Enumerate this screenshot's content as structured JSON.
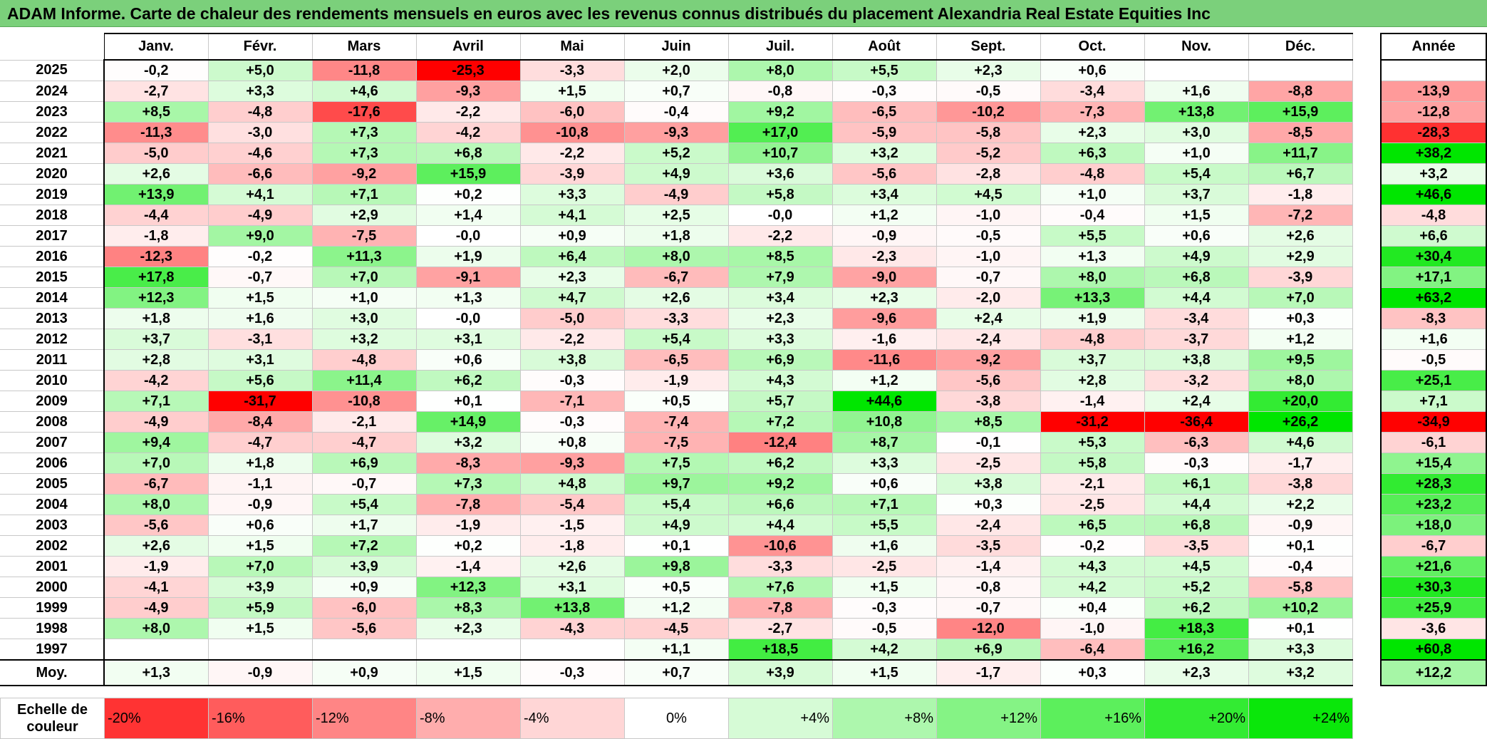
{
  "title": "ADAM Informe. Carte de chaleur des rendements mensuels en euros avec les revenus connus distribués du placement Alexandria Real Estate Equities Inc",
  "chart_data": {
    "type": "heatmap",
    "columns": [
      "Janv.",
      "Févr.",
      "Mars",
      "Avril",
      "Mai",
      "Juin",
      "Juil.",
      "Août",
      "Sept.",
      "Oct.",
      "Nov.",
      "Déc."
    ],
    "year_column_label": "Année",
    "avg_row_label": "Moy.",
    "rows": [
      {
        "year": "2025",
        "values": [
          "-0,2",
          "+5,0",
          "-11,8",
          "-25,3",
          "-3,3",
          "+2,0",
          "+8,0",
          "+5,5",
          "+2,3",
          "+0,6",
          "",
          ""
        ],
        "annual": ""
      },
      {
        "year": "2024",
        "values": [
          "-2,7",
          "+3,3",
          "+4,6",
          "-9,3",
          "+1,5",
          "+0,7",
          "-0,8",
          "-0,3",
          "-0,5",
          "-3,4",
          "+1,6",
          "-8,8"
        ],
        "annual": "-13,9"
      },
      {
        "year": "2023",
        "values": [
          "+8,5",
          "-4,8",
          "-17,6",
          "-2,2",
          "-6,0",
          "-0,4",
          "+9,2",
          "-6,5",
          "-10,2",
          "-7,3",
          "+13,8",
          "+15,9"
        ],
        "annual": "-12,8"
      },
      {
        "year": "2022",
        "values": [
          "-11,3",
          "-3,0",
          "+7,3",
          "-4,2",
          "-10,8",
          "-9,3",
          "+17,0",
          "-5,9",
          "-5,8",
          "+2,3",
          "+3,0",
          "-8,5"
        ],
        "annual": "-28,3"
      },
      {
        "year": "2021",
        "values": [
          "-5,0",
          "-4,6",
          "+7,3",
          "+6,8",
          "-2,2",
          "+5,2",
          "+10,7",
          "+3,2",
          "-5,2",
          "+6,3",
          "+1,0",
          "+11,7"
        ],
        "annual": "+38,2"
      },
      {
        "year": "2020",
        "values": [
          "+2,6",
          "-6,6",
          "-9,2",
          "+15,9",
          "-3,9",
          "+4,9",
          "+3,6",
          "-5,6",
          "-2,8",
          "-4,8",
          "+5,4",
          "+6,7"
        ],
        "annual": "+3,2"
      },
      {
        "year": "2019",
        "values": [
          "+13,9",
          "+4,1",
          "+7,1",
          "+0,2",
          "+3,3",
          "-4,9",
          "+5,8",
          "+3,4",
          "+4,5",
          "+1,0",
          "+3,7",
          "-1,8"
        ],
        "annual": "+46,6"
      },
      {
        "year": "2018",
        "values": [
          "-4,4",
          "-4,9",
          "+2,9",
          "+1,4",
          "+4,1",
          "+2,5",
          "-0,0",
          "+1,2",
          "-1,0",
          "-0,4",
          "+1,5",
          "-7,2"
        ],
        "annual": "-4,8"
      },
      {
        "year": "2017",
        "values": [
          "-1,8",
          "+9,0",
          "-7,5",
          "-0,0",
          "+0,9",
          "+1,8",
          "-2,2",
          "-0,9",
          "-0,5",
          "+5,5",
          "+0,6",
          "+2,6"
        ],
        "annual": "+6,6"
      },
      {
        "year": "2016",
        "values": [
          "-12,3",
          "-0,2",
          "+11,3",
          "+1,9",
          "+6,4",
          "+8,0",
          "+8,5",
          "-2,3",
          "-1,0",
          "+1,3",
          "+4,9",
          "+2,9"
        ],
        "annual": "+30,4"
      },
      {
        "year": "2015",
        "values": [
          "+17,8",
          "-0,7",
          "+7,0",
          "-9,1",
          "+2,3",
          "-6,7",
          "+7,9",
          "-9,0",
          "-0,7",
          "+8,0",
          "+6,8",
          "-3,9"
        ],
        "annual": "+17,1"
      },
      {
        "year": "2014",
        "values": [
          "+12,3",
          "+1,5",
          "+1,0",
          "+1,3",
          "+4,7",
          "+2,6",
          "+3,4",
          "+2,3",
          "-2,0",
          "+13,3",
          "+4,4",
          "+7,0"
        ],
        "annual": "+63,2"
      },
      {
        "year": "2013",
        "values": [
          "+1,8",
          "+1,6",
          "+3,0",
          "-0,0",
          "-5,0",
          "-3,3",
          "+2,3",
          "-9,6",
          "+2,4",
          "+1,9",
          "-3,4",
          "+0,3"
        ],
        "annual": "-8,3"
      },
      {
        "year": "2012",
        "values": [
          "+3,7",
          "-3,1",
          "+3,2",
          "+3,1",
          "-2,2",
          "+5,4",
          "+3,3",
          "-1,6",
          "-2,4",
          "-4,8",
          "-3,7",
          "+1,2"
        ],
        "annual": "+1,6"
      },
      {
        "year": "2011",
        "values": [
          "+2,8",
          "+3,1",
          "-4,8",
          "+0,6",
          "+3,8",
          "-6,5",
          "+6,9",
          "-11,6",
          "-9,2",
          "+3,7",
          "+3,8",
          "+9,5"
        ],
        "annual": "-0,5"
      },
      {
        "year": "2010",
        "values": [
          "-4,2",
          "+5,6",
          "+11,4",
          "+6,2",
          "-0,3",
          "-1,9",
          "+4,3",
          "+1,2",
          "-5,6",
          "+2,8",
          "-3,2",
          "+8,0"
        ],
        "annual": "+25,1"
      },
      {
        "year": "2009",
        "values": [
          "+7,1",
          "-31,7",
          "-10,8",
          "+0,1",
          "-7,1",
          "+0,5",
          "+5,7",
          "+44,6",
          "-3,8",
          "-1,4",
          "+2,4",
          "+20,0"
        ],
        "annual": "+7,1"
      },
      {
        "year": "2008",
        "values": [
          "-4,9",
          "-8,4",
          "-2,1",
          "+14,9",
          "-0,3",
          "-7,4",
          "+7,2",
          "+10,8",
          "+8,5",
          "-31,2",
          "-36,4",
          "+26,2"
        ],
        "annual": "-34,9"
      },
      {
        "year": "2007",
        "values": [
          "+9,4",
          "-4,7",
          "-4,7",
          "+3,2",
          "+0,8",
          "-7,5",
          "-12,4",
          "+8,7",
          "-0,1",
          "+5,3",
          "-6,3",
          "+4,6"
        ],
        "annual": "-6,1"
      },
      {
        "year": "2006",
        "values": [
          "+7,0",
          "+1,8",
          "+6,9",
          "-8,3",
          "-9,3",
          "+7,5",
          "+6,2",
          "+3,3",
          "-2,5",
          "+5,8",
          "-0,3",
          "-1,7"
        ],
        "annual": "+15,4"
      },
      {
        "year": "2005",
        "values": [
          "-6,7",
          "-1,1",
          "-0,7",
          "+7,3",
          "+4,8",
          "+9,7",
          "+9,2",
          "+0,6",
          "+3,8",
          "-2,1",
          "+6,1",
          "-3,8"
        ],
        "annual": "+28,3"
      },
      {
        "year": "2004",
        "values": [
          "+8,0",
          "-0,9",
          "+5,4",
          "-7,8",
          "-5,4",
          "+5,4",
          "+6,6",
          "+7,1",
          "+0,3",
          "-2,5",
          "+4,4",
          "+2,2"
        ],
        "annual": "+23,2"
      },
      {
        "year": "2003",
        "values": [
          "-5,6",
          "+0,6",
          "+1,7",
          "-1,9",
          "-1,5",
          "+4,9",
          "+4,4",
          "+5,5",
          "-2,4",
          "+6,5",
          "+6,8",
          "-0,9"
        ],
        "annual": "+18,0"
      },
      {
        "year": "2002",
        "values": [
          "+2,6",
          "+1,5",
          "+7,2",
          "+0,2",
          "-1,8",
          "+0,1",
          "-10,6",
          "+1,6",
          "-3,5",
          "-0,2",
          "-3,5",
          "+0,1"
        ],
        "annual": "-6,7"
      },
      {
        "year": "2001",
        "values": [
          "-1,9",
          "+7,0",
          "+3,9",
          "-1,4",
          "+2,6",
          "+9,8",
          "-3,3",
          "-2,5",
          "-1,4",
          "+4,3",
          "+4,5",
          "-0,4"
        ],
        "annual": "+21,6"
      },
      {
        "year": "2000",
        "values": [
          "-4,1",
          "+3,9",
          "+0,9",
          "+12,3",
          "+3,1",
          "+0,5",
          "+7,6",
          "+1,5",
          "-0,8",
          "+4,2",
          "+5,2",
          "-5,8"
        ],
        "annual": "+30,3"
      },
      {
        "year": "1999",
        "values": [
          "-4,9",
          "+5,9",
          "-6,0",
          "+8,3",
          "+13,8",
          "+1,2",
          "-7,8",
          "-0,3",
          "-0,7",
          "+0,4",
          "+6,2",
          "+10,2"
        ],
        "annual": "+25,9"
      },
      {
        "year": "1998",
        "values": [
          "+8,0",
          "+1,5",
          "-5,6",
          "+2,3",
          "-4,3",
          "-4,5",
          "-2,7",
          "-0,5",
          "-12,0",
          "-1,0",
          "+18,3",
          "+0,1"
        ],
        "annual": "-3,6"
      },
      {
        "year": "1997",
        "values": [
          "",
          "",
          "",
          "",
          "",
          "+1,1",
          "+18,5",
          "+4,2",
          "+6,9",
          "-6,4",
          "+16,2",
          "+3,3"
        ],
        "annual": "+60,8"
      }
    ],
    "averages": [
      "+1,3",
      "-0,9",
      "+0,9",
      "+1,5",
      "-0,3",
      "+0,7",
      "+3,9",
      "+1,5",
      "-1,7",
      "+0,3",
      "+2,3",
      "+3,2"
    ],
    "average_annual": "+12,2",
    "scale_label": "Echelle de couleur",
    "scale": [
      "-20%",
      "-16%",
      "-12%",
      "-8%",
      "-4%",
      "0%",
      "+4%",
      "+8%",
      "+12%",
      "+16%",
      "+20%",
      "+24%"
    ]
  },
  "colors": {
    "title_bg": "#7bd07b",
    "neg_max": "#ff0000",
    "pos_max": "#00e000",
    "zero": "#ffffff"
  }
}
